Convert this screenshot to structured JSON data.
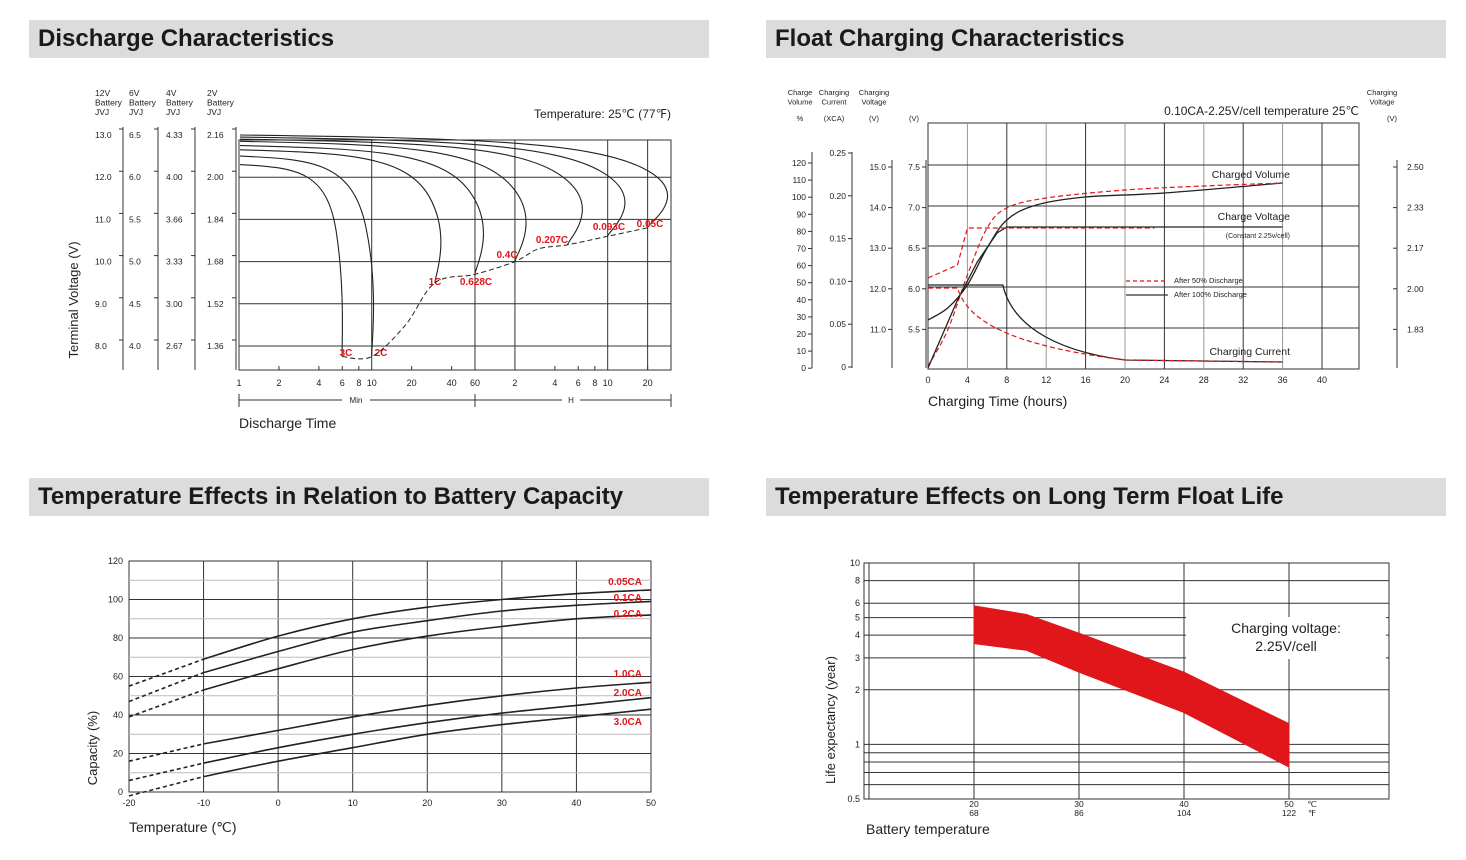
{
  "colors": {
    "accent": "#e0161b",
    "grid": "#333333",
    "header_bg": "#dcdcdc"
  },
  "chart_data": [
    {
      "type": "line",
      "title": "Discharge Characteristics",
      "ylabel": "Terminal Voltage (V)",
      "xlabel": "Discharge Time",
      "annotation": "Temperature: 25℃ (77℉)",
      "x_scale": "log",
      "x_units": {
        "min": "Min",
        "h": "H"
      },
      "x_ticks_min": [
        "1",
        "2",
        "4",
        "6",
        "8",
        "10",
        "20",
        "40",
        "60"
      ],
      "x_ticks_h": [
        "2",
        "4",
        "6",
        "8",
        "10",
        "20"
      ],
      "voltage_axes": [
        {
          "header": [
            "12V",
            "Battery",
            "JVJ"
          ],
          "ticks": [
            "13.0",
            "12.0",
            "11.0",
            "10.0",
            "9.0",
            "8.0"
          ]
        },
        {
          "header": [
            "6V",
            "Battery",
            "JVJ"
          ],
          "ticks": [
            "6.5",
            "6.0",
            "5.5",
            "5.0",
            "4.5",
            "4.0"
          ]
        },
        {
          "header": [
            "4V",
            "Battery",
            "JVJ"
          ],
          "ticks": [
            "4.33",
            "4.00",
            "3.66",
            "3.33",
            "3.00",
            "2.67"
          ]
        },
        {
          "header": [
            "2V",
            "Battery",
            "JVJ"
          ],
          "ticks": [
            "2.16",
            "2.00",
            "1.84",
            "1.68",
            "1.52",
            "1.36"
          ]
        }
      ],
      "series": [
        {
          "name": "3C",
          "end_minutes": 6,
          "end_voltage_12v": 7.75
        },
        {
          "name": "2C",
          "end_minutes": 10,
          "end_voltage_12v": 7.75
        },
        {
          "name": "1C",
          "end_minutes": 30,
          "end_voltage_12v": 9.5
        },
        {
          "name": "0.628C",
          "end_minutes": 60,
          "end_voltage_12v": 9.7
        },
        {
          "name": "0.4C",
          "end_minutes": 120,
          "end_voltage_12v": 10.0
        },
        {
          "name": "0.207C",
          "end_minutes": 300,
          "end_voltage_12v": 10.4
        },
        {
          "name": "0.093C",
          "end_minutes": 600,
          "end_voltage_12v": 10.6
        },
        {
          "name": "0.05C",
          "end_minutes": 1200,
          "end_voltage_12v": 10.8
        }
      ]
    },
    {
      "type": "line",
      "title": "Float Charging Characteristics",
      "xlabel": "Charging Time (hours)",
      "annotation": "0.10CA-2.25V/cell  temperature 25℃",
      "x_ticks": [
        "0",
        "4",
        "8",
        "12",
        "16",
        "20",
        "24",
        "28",
        "32",
        "36",
        "40"
      ],
      "axes": [
        {
          "header": [
            "Charge",
            "Volume"
          ],
          "unit": "%",
          "ticks": [
            "120",
            "110",
            "100",
            "90",
            "80",
            "70",
            "60",
            "50",
            "40",
            "30",
            "20",
            "10",
            "0"
          ]
        },
        {
          "header": [
            "Charging",
            "Current"
          ],
          "unit": "(XCA)",
          "ticks": [
            "0.25",
            "0.20",
            "0.15",
            "0.10",
            "0.05",
            "0"
          ]
        },
        {
          "header": [
            "Charging",
            "Voltage"
          ],
          "unit": "(V)",
          "ticks": [
            "15.0",
            "14.0",
            "13.0",
            "12.0",
            "11.0"
          ]
        },
        {
          "header": [],
          "unit": "(V)",
          "ticks": [
            "7.5",
            "7.0",
            "6.5",
            "6.0",
            "5.5"
          ]
        },
        {
          "header": [
            "Charging",
            "Voltage"
          ],
          "unit": "(V)",
          "ticks": [
            "2.50",
            "2.33",
            "2.17",
            "2.00",
            "1.83"
          ]
        }
      ],
      "curve_labels": {
        "charged_volume": "Charged Volume",
        "charge_voltage": "Charge Voltage",
        "charge_voltage_note": "(Constant 2.25v/cell)",
        "charging_current": "Charging Current"
      },
      "legend": [
        {
          "name": "After  50% Discharge",
          "style": "dashed",
          "color": "#e0161b"
        },
        {
          "name": "After 100% Discharge",
          "style": "solid",
          "color": "#222222"
        }
      ]
    },
    {
      "type": "line",
      "title": "Temperature Effects in Relation to Battery Capacity",
      "xlabel": "Temperature (℃)",
      "ylabel": "Capacity (%)",
      "xlim": [
        -20,
        50
      ],
      "ylim": [
        0,
        120
      ],
      "x_ticks": [
        "-20",
        "-10",
        "0",
        "10",
        "20",
        "30",
        "40",
        "50"
      ],
      "y_ticks": [
        "0",
        "20",
        "40",
        "60",
        "80",
        "100",
        "120"
      ],
      "series": [
        {
          "name": "0.05CA",
          "x": [
            -20,
            -10,
            0,
            10,
            20,
            30,
            40,
            50
          ],
          "y": [
            55,
            69,
            81,
            90,
            96,
            100,
            103,
            105
          ]
        },
        {
          "name": "0.1CA",
          "x": [
            -20,
            -10,
            0,
            10,
            20,
            30,
            40,
            50
          ],
          "y": [
            47,
            62,
            73,
            83,
            89,
            94,
            97,
            99
          ]
        },
        {
          "name": "0.2CA",
          "x": [
            -20,
            -10,
            0,
            10,
            20,
            30,
            40,
            50
          ],
          "y": [
            39,
            53,
            64,
            74,
            81,
            86,
            90,
            92
          ]
        },
        {
          "name": "1.0CA",
          "x": [
            -20,
            -10,
            0,
            10,
            20,
            30,
            40,
            50
          ],
          "y": [
            16,
            25,
            32,
            39,
            45,
            50,
            54,
            57
          ]
        },
        {
          "name": "2.0CA",
          "x": [
            -20,
            -10,
            0,
            10,
            20,
            30,
            40,
            50
          ],
          "y": [
            6,
            15,
            23,
            30,
            36,
            41,
            45,
            49
          ]
        },
        {
          "name": "3.0CA",
          "x": [
            -20,
            -10,
            0,
            10,
            20,
            30,
            40,
            50
          ],
          "y": [
            -2,
            8,
            16,
            23,
            30,
            35,
            39,
            43
          ]
        }
      ]
    },
    {
      "type": "area",
      "title": "Temperature Effects on Long Term Float Life",
      "xlabel": "Battery temperature",
      "ylabel": "Life expectancy (year)",
      "y_scale": "log",
      "ylim": [
        0.5,
        10
      ],
      "y_ticks": [
        "10",
        "8",
        "6",
        "5",
        "4",
        "3",
        "2",
        "1",
        "0.5"
      ],
      "x_ticks_c": [
        "20",
        "30",
        "40",
        "50"
      ],
      "x_ticks_f": [
        "68",
        "86",
        "104",
        "122"
      ],
      "x_unit_c": "℃",
      "x_unit_f": "℉",
      "annotation": [
        "Charging voltage:",
        "2.25V/cell"
      ],
      "band": {
        "x_c": [
          20,
          25,
          30,
          40,
          50
        ],
        "upper": [
          5.8,
          5.2,
          4.1,
          2.5,
          1.3
        ],
        "lower": [
          3.6,
          3.3,
          2.5,
          1.5,
          0.75
        ]
      }
    }
  ]
}
